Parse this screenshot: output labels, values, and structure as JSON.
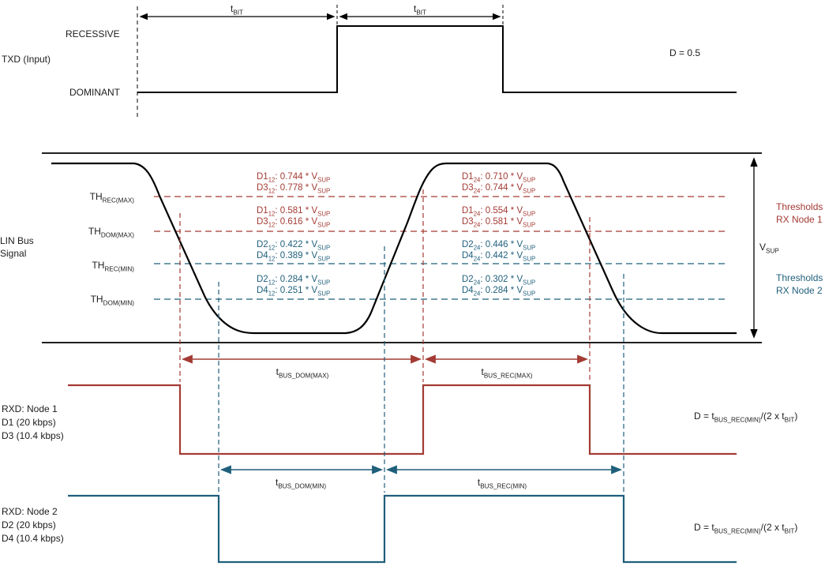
{
  "colors": {
    "node1_red": "#A33B34",
    "node2_blue": "#1F5F7B",
    "signal_black": "#000000"
  },
  "txd": {
    "label": "TXD (Input)",
    "recessive": "RECESSIVE",
    "dominant": "DOMINANT",
    "tbit": "t~BIT~",
    "duty": "D = 0.5"
  },
  "lin": {
    "label_lines": [
      "LIN Bus",
      "Signal"
    ],
    "th_labels": [
      "TH~REC(MAX)~",
      "TH~DOM(MAX)~",
      "TH~REC(MIN)~",
      "TH~DOM(MIN)~"
    ],
    "vsup": "V~SUP~",
    "node1_legend": [
      "Thresholds",
      "RX Node 1"
    ],
    "node2_legend": [
      "Thresholds",
      "RX Node 2"
    ],
    "thresholds_left": [
      {
        "lines": [
          "D1~12~: 0.744 * V~SUP~",
          "D3~12~: 0.778 * V~SUP~"
        ]
      },
      {
        "lines": [
          "D1~12~: 0.581 * V~SUP~",
          "D3~12~: 0.616 * V~SUP~"
        ]
      },
      {
        "lines": [
          "D2~12~: 0.422 * V~SUP~",
          "D4~12~: 0.389 * V~SUP~"
        ]
      },
      {
        "lines": [
          "D2~12~: 0.284 * V~SUP~",
          "D4~12~: 0.251 * V~SUP~"
        ]
      }
    ],
    "thresholds_right": [
      {
        "lines": [
          "D1~24~: 0.710 * V~SUP~",
          "D3~24~: 0.744 * V~SUP~"
        ]
      },
      {
        "lines": [
          "D1~24~: 0.554 * V~SUP~",
          "D3~24~: 0.581 * V~SUP~"
        ]
      },
      {
        "lines": [
          "D2~24~: 0.446 * V~SUP~",
          "D4~24~: 0.442 * V~SUP~"
        ]
      },
      {
        "lines": [
          "D2~24~: 0.302 * V~SUP~",
          "D4~24~: 0.284 * V~SUP~"
        ]
      }
    ]
  },
  "rxd1": {
    "lines": [
      "RXD: Node 1",
      "D1 (20 kbps)",
      "D3 (10.4 kbps)"
    ],
    "t_dom": "t~BUS_DOM(MAX)~",
    "t_rec": "t~BUS_REC(MAX)~",
    "duty": "D = t~BUS_REC(MIN)~/(2 x t~BIT~)"
  },
  "rxd2": {
    "lines": [
      "RXD: Node 2",
      "D2 (20 kbps)",
      "D4 (10.4 kbps)"
    ],
    "t_dom": "t~BUS_DOM(MIN)~",
    "t_rec": "t~BUS_REC(MIN)~",
    "duty": "D = t~BUS_REC(MIN)~/(2 x t~BIT~)"
  }
}
